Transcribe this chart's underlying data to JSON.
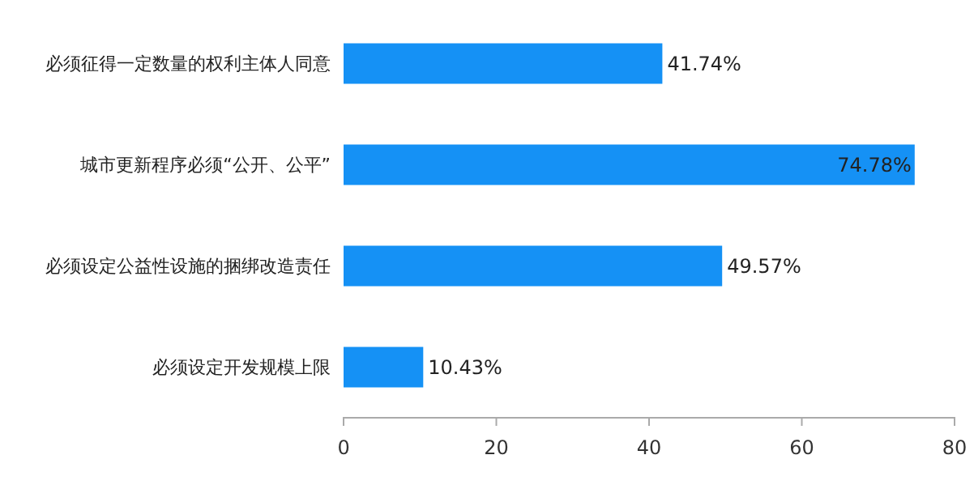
{
  "chart_data": {
    "type": "bar",
    "orientation": "horizontal",
    "categories": [
      "必须征得一定数量的权利主体人同意",
      "城市更新程序必须“公开、公平”",
      "必须设定公益性设施的捆绑改造责任",
      "必须设定开发规模上限"
    ],
    "values": [
      41.74,
      74.78,
      49.57,
      10.43
    ],
    "value_labels": [
      "41.74%",
      "74.78%",
      "49.57%",
      "10.43%"
    ],
    "color": "#1591f5",
    "xlim": [
      0,
      80
    ],
    "xticks": [
      0,
      20,
      40,
      60,
      80
    ],
    "grid": false
  }
}
